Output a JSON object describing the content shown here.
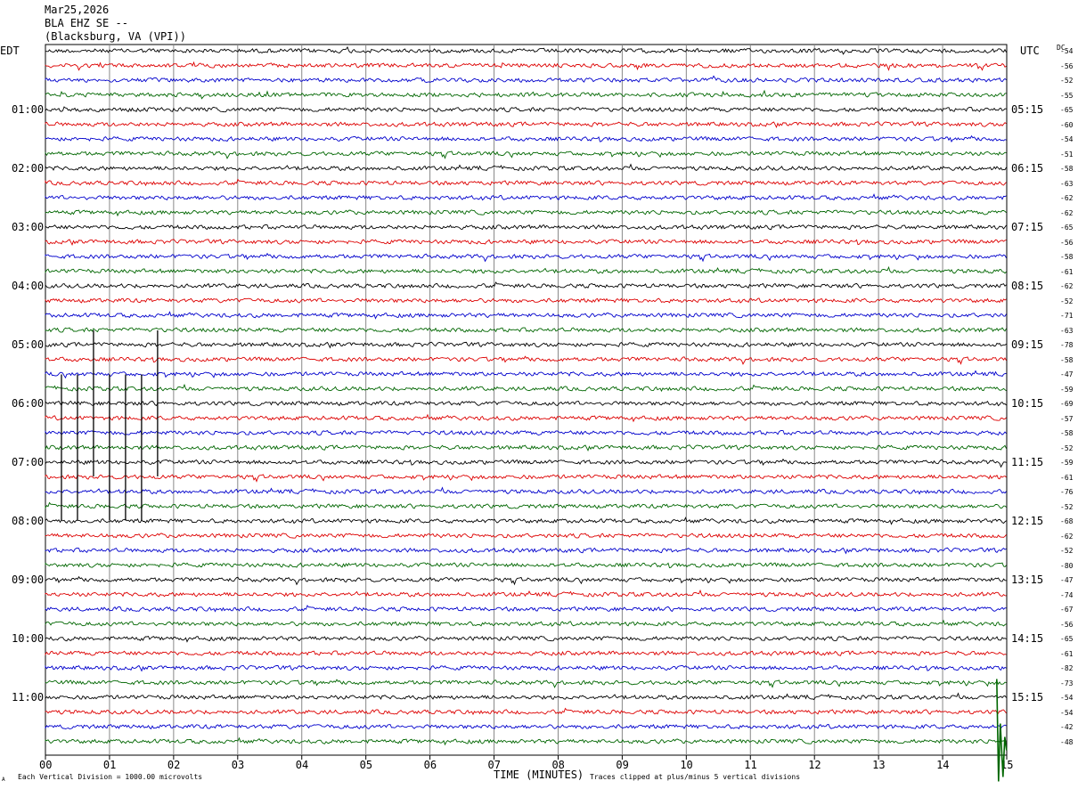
{
  "header": {
    "date": "Mar25,2026",
    "station": "BLA EHZ SE --",
    "location": "(Blacksburg, VA (VPI))"
  },
  "left_zone": "EDT",
  "right_zone": "UTC",
  "dc_label": "DC",
  "footer": {
    "scale_note": "Each Vertical Division = 1000.00 microvolts",
    "xlabel": "TIME (MINUTES)",
    "clip_note": "Traces clipped at plus/minus 5 vertical divisions",
    "corner_mark": "A"
  },
  "chart_data": {
    "type": "line",
    "title": "",
    "xlabel": "TIME (MINUTES)",
    "x_ticks": [
      "00",
      "01",
      "02",
      "03",
      "04",
      "05",
      "06",
      "07",
      "08",
      "09",
      "10",
      "11",
      "12",
      "13",
      "14",
      "15"
    ],
    "xlim": [
      0,
      15
    ],
    "grid": true,
    "trace_colors": [
      "#000000",
      "#dd0000",
      "#0000cc",
      "#006600"
    ],
    "left_hour_labels": [
      "01:00",
      "02:00",
      "03:00",
      "04:00",
      "05:00",
      "06:00",
      "07:00",
      "08:00",
      "09:00",
      "10:00",
      "11:00"
    ],
    "right_hour_labels": [
      "05:15",
      "06:15",
      "07:15",
      "08:15",
      "09:15",
      "10:15",
      "11:15",
      "12:15",
      "13:15",
      "14:15",
      "15:15"
    ],
    "dc_offsets": [
      "-54",
      "-56",
      "-52",
      "-55",
      "-65",
      "-60",
      "-54",
      "-51",
      "-58",
      "-63",
      "-62",
      "-62",
      "-65",
      "-56",
      "-58",
      "-61",
      "-62",
      "-52",
      "-71",
      "-63",
      "-78",
      "-58",
      "-47",
      "-59",
      "-69",
      "-57",
      "-58",
      "-52",
      "-59",
      "-61",
      "-76",
      "-52",
      "-68",
      "-62",
      "-52",
      "-80",
      "-47",
      "-74",
      "-67",
      "-56",
      "-65",
      "-61",
      "-82",
      "-73",
      "-54",
      "-54",
      "-42",
      "-48"
    ],
    "trace_count": 48,
    "events": [
      {
        "time_min": 0.25,
        "row": 27
      },
      {
        "time_min": 0.5,
        "row": 27
      },
      {
        "time_min": 0.75,
        "row": 24
      },
      {
        "time_min": 1.0,
        "row": 27
      },
      {
        "time_min": 1.25,
        "row": 27
      },
      {
        "time_min": 1.5,
        "row": 27
      },
      {
        "time_min": 1.75,
        "row": 24
      }
    ],
    "clipped_event": {
      "time_min": 14.9,
      "row": 47
    }
  }
}
